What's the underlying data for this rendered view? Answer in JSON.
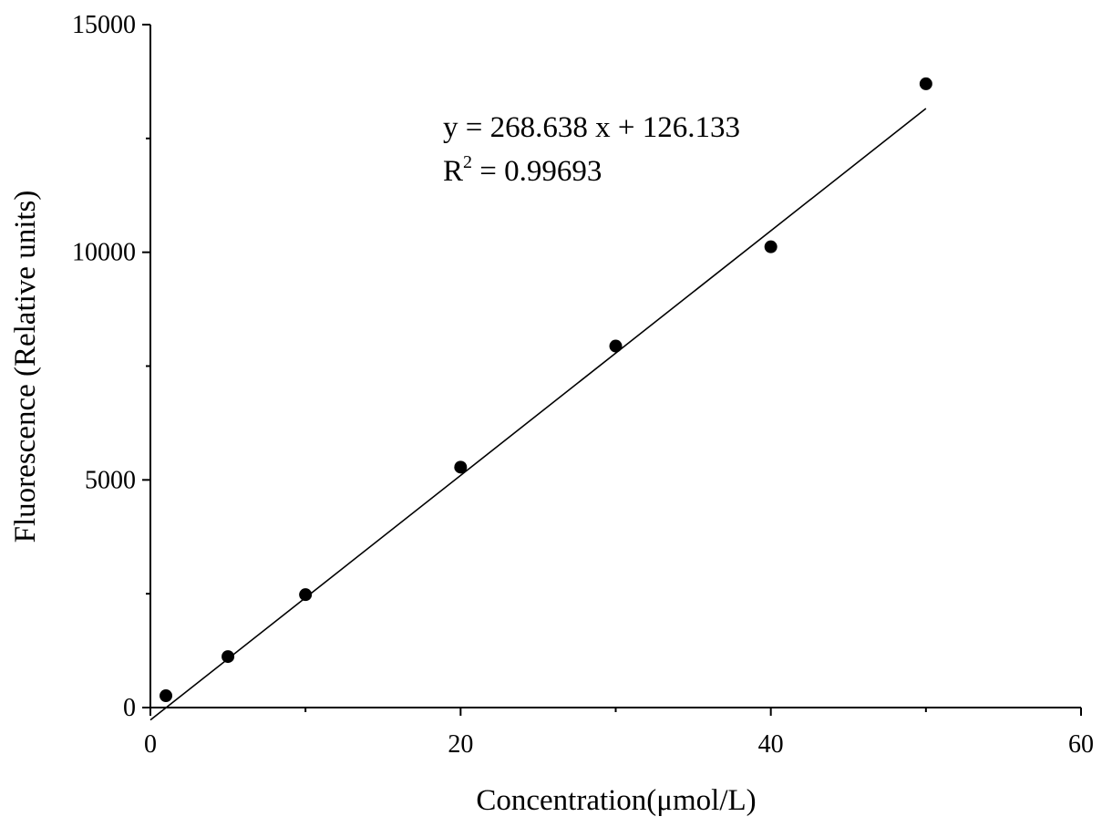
{
  "chart_data": {
    "type": "scatter",
    "title": "",
    "xlabel": "Concentration(μmol/L)",
    "ylabel": "Fluorescence (Relative units)",
    "xlim": [
      0,
      60
    ],
    "ylim": [
      0,
      15000
    ],
    "x_ticks": [
      "0",
      "20",
      "40",
      "60"
    ],
    "y_ticks": [
      "0",
      "5000",
      "10000",
      "15000"
    ],
    "x_tick_values": [
      0,
      20,
      40,
      60
    ],
    "y_tick_values": [
      0,
      5000,
      10000,
      15000
    ],
    "grid": false,
    "legend": "none",
    "series": [
      {
        "points": [
          {
            "x": 1,
            "y": 260
          },
          {
            "x": 5,
            "y": 1120
          },
          {
            "x": 10,
            "y": 2480
          },
          {
            "x": 20,
            "y": 5280
          },
          {
            "x": 30,
            "y": 7940
          },
          {
            "x": 40,
            "y": 10120
          },
          {
            "x": 50,
            "y": 13700
          }
        ],
        "marker_color": "#000000"
      }
    ],
    "fit_line": {
      "slope": 268.638,
      "intercept": 126.133,
      "x_range": [
        0,
        50
      ],
      "color": "#000000"
    },
    "annotations": {
      "equation": "y = 268.638 x + 126.133",
      "r2_prefix": "R",
      "r2_exponent": "2",
      "r2_value": " = 0.99693"
    }
  }
}
